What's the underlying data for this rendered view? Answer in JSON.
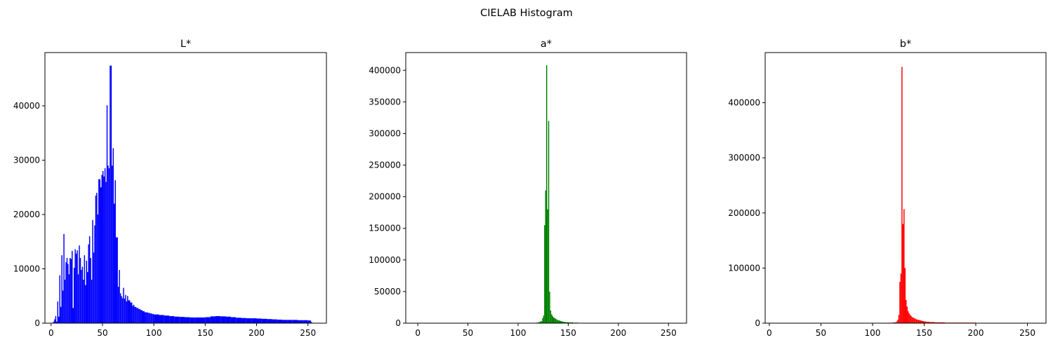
{
  "figure": {
    "title": "CIELAB Histogram"
  },
  "chart_data": [
    {
      "type": "bar",
      "title": "L*",
      "color": "#0000ff",
      "xlabel": "",
      "ylabel": "",
      "xlim": [
        -6,
        268
      ],
      "ylim": [
        0,
        49800
      ],
      "xticks": [
        0,
        50,
        100,
        150,
        200,
        250
      ],
      "yticks": [
        0,
        10000,
        20000,
        30000,
        40000
      ],
      "grid": false,
      "x": [
        2,
        3,
        4,
        5,
        6,
        7,
        8,
        9,
        10,
        11,
        12,
        13,
        14,
        15,
        16,
        17,
        18,
        19,
        20,
        21,
        22,
        23,
        24,
        25,
        26,
        27,
        28,
        29,
        30,
        31,
        32,
        33,
        34,
        35,
        36,
        37,
        38,
        39,
        40,
        41,
        42,
        43,
        44,
        45,
        46,
        47,
        48,
        49,
        50,
        51,
        52,
        53,
        54,
        55,
        56,
        57,
        58,
        59,
        60,
        61,
        62,
        63,
        64,
        65,
        66,
        67,
        68,
        69,
        70,
        71,
        72,
        73,
        74,
        75,
        76,
        77,
        78,
        79,
        80,
        81,
        82,
        83,
        84,
        85,
        86,
        87,
        88,
        89,
        90,
        91,
        92,
        93,
        94,
        95,
        96,
        97,
        98,
        99,
        100,
        105,
        110,
        115,
        120,
        125,
        130,
        135,
        140,
        145,
        150,
        155,
        160,
        165,
        170,
        175,
        180,
        185,
        190,
        195,
        200,
        205,
        210,
        215,
        220,
        225,
        230,
        235,
        240,
        245,
        250,
        253
      ],
      "values": [
        300,
        700,
        1300,
        300,
        4000,
        1200,
        8800,
        3000,
        12500,
        6000,
        16400,
        8000,
        11200,
        12000,
        10900,
        9000,
        12000,
        11800,
        13300,
        2800,
        10200,
        13600,
        12800,
        13400,
        9000,
        14300,
        12000,
        9800,
        10400,
        8000,
        12500,
        7000,
        11500,
        9400,
        14500,
        16000,
        12000,
        8000,
        19000,
        13000,
        18000,
        23500,
        24000,
        20000,
        26500,
        26500,
        25000,
        27300,
        28000,
        27000,
        28500,
        26000,
        40100,
        29000,
        28500,
        47400,
        47400,
        29000,
        32200,
        22000,
        26300,
        15800,
        15800,
        6700,
        9800,
        5500,
        5000,
        4600,
        6500,
        4500,
        5200,
        4000,
        5000,
        4200,
        4200,
        3800,
        3800,
        3200,
        3400,
        3000,
        3000,
        2800,
        2800,
        2600,
        2600,
        2400,
        2400,
        2200,
        2200,
        2000,
        2000,
        2000,
        1900,
        1900,
        1800,
        1800,
        1700,
        1700,
        1600,
        1500,
        1400,
        1300,
        1200,
        1150,
        1100,
        1050,
        1050,
        1050,
        1100,
        1250,
        1300,
        1250,
        1200,
        1100,
        1000,
        950,
        900,
        900,
        850,
        800,
        750,
        700,
        650,
        600,
        600,
        600,
        550,
        550,
        500,
        200
      ]
    },
    {
      "type": "bar",
      "title": "a*",
      "color": "#008000",
      "xlabel": "",
      "ylabel": "",
      "xlim": [
        -12,
        268
      ],
      "ylim": [
        0,
        428000
      ],
      "xticks": [
        0,
        50,
        100,
        150,
        200,
        250
      ],
      "yticks": [
        0,
        50000,
        100000,
        150000,
        200000,
        250000,
        300000,
        350000,
        400000
      ],
      "grid": false,
      "x": [
        0,
        20,
        40,
        60,
        80,
        100,
        110,
        115,
        118,
        120,
        122,
        124,
        125,
        126,
        127,
        128,
        129,
        130,
        131,
        132,
        133,
        134,
        135,
        136,
        137,
        138,
        139,
        140,
        141,
        142,
        143,
        144,
        145,
        146,
        147,
        148,
        150,
        155,
        160,
        170,
        200,
        250
      ],
      "values": [
        400,
        400,
        400,
        400,
        400,
        400,
        500,
        600,
        900,
        1500,
        3000,
        8000,
        12000,
        155000,
        210000,
        408000,
        180000,
        320000,
        50000,
        20000,
        14000,
        11000,
        9000,
        8000,
        7000,
        6000,
        5000,
        4500,
        4000,
        3500,
        3000,
        2500,
        2200,
        1900,
        1700,
        1500,
        1200,
        800,
        500,
        400,
        300,
        300
      ]
    },
    {
      "type": "bar",
      "title": "b*",
      "color": "#ff0000",
      "xlabel": "",
      "ylabel": "",
      "xlim": [
        -4,
        268
      ],
      "ylim": [
        0,
        491000
      ],
      "xticks": [
        0,
        50,
        100,
        150,
        200,
        250
      ],
      "yticks": [
        0,
        100000,
        200000,
        300000,
        400000
      ],
      "grid": false,
      "x": [
        0,
        20,
        40,
        60,
        80,
        100,
        110,
        115,
        120,
        123,
        124,
        125,
        126,
        127,
        128,
        129,
        130,
        131,
        132,
        133,
        134,
        135,
        136,
        137,
        138,
        139,
        140,
        141,
        142,
        143,
        144,
        145,
        146,
        147,
        148,
        149,
        150,
        152,
        155,
        160,
        170,
        200,
        250
      ],
      "values": [
        500,
        500,
        500,
        500,
        500,
        500,
        600,
        800,
        1500,
        3000,
        6000,
        15000,
        75000,
        90000,
        465000,
        180000,
        207000,
        100000,
        42000,
        30000,
        22000,
        18000,
        15000,
        13000,
        11000,
        10000,
        9000,
        8000,
        7000,
        6500,
        6000,
        5500,
        5000,
        4500,
        4000,
        3500,
        3000,
        2500,
        2000,
        1500,
        1000,
        500,
        500
      ]
    }
  ]
}
